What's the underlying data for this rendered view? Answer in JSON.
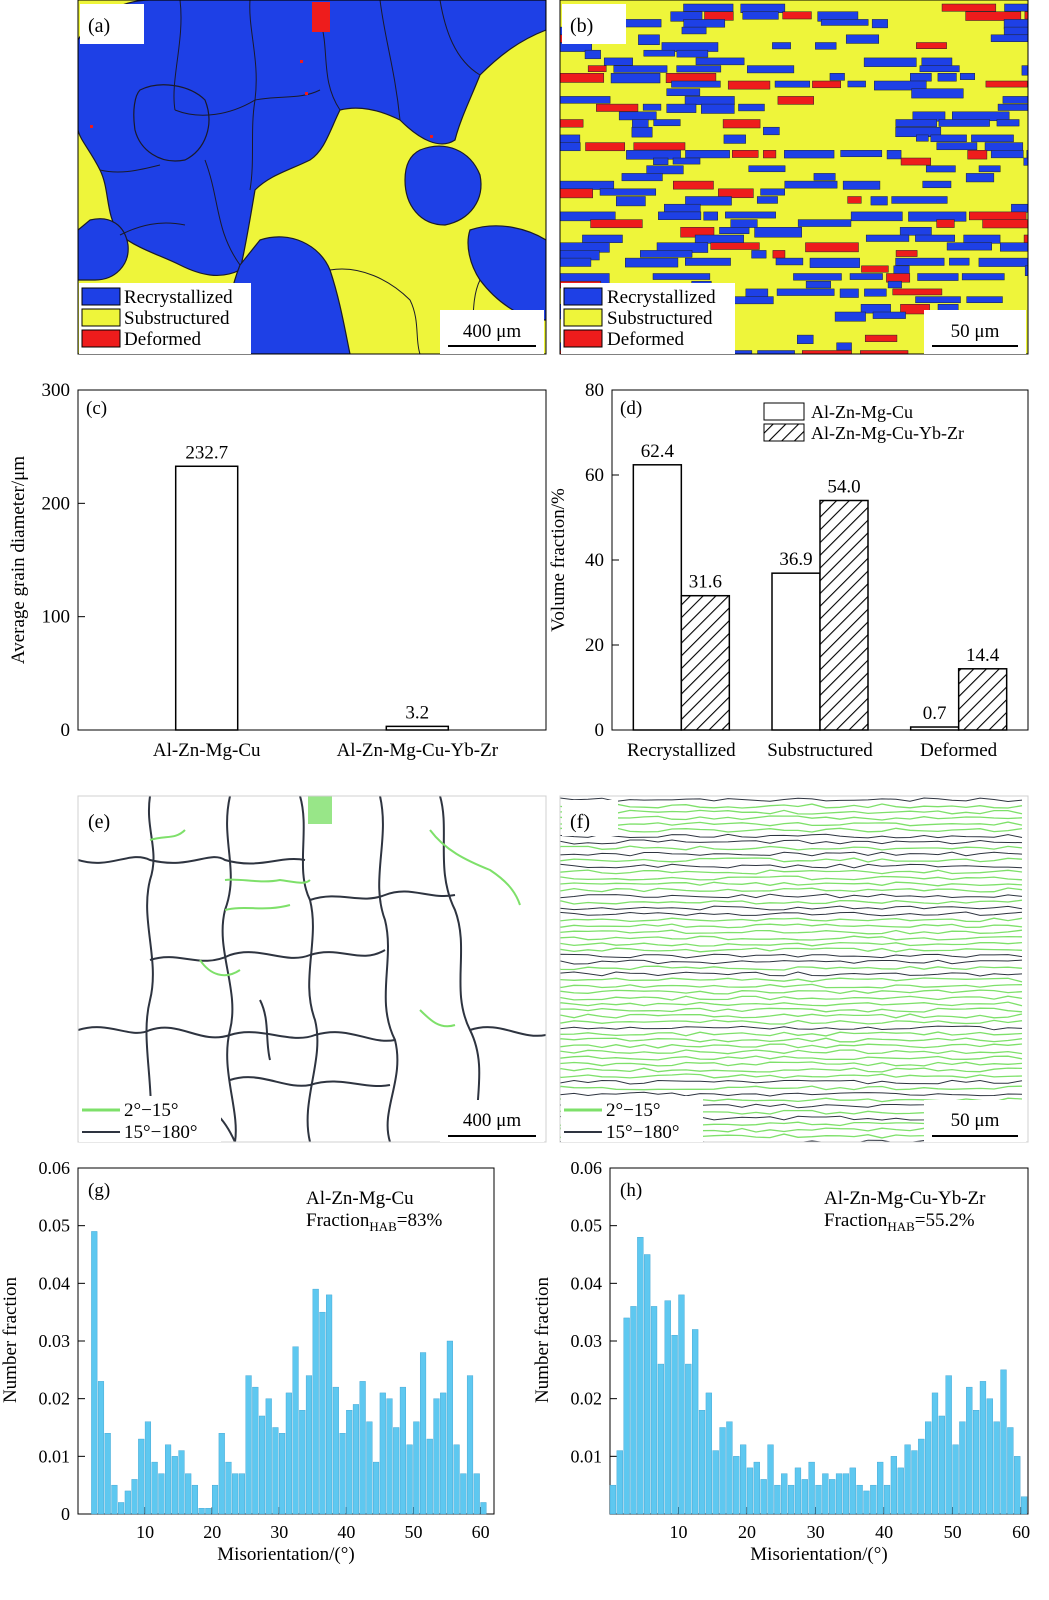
{
  "panels": {
    "a": {
      "label": "(a)",
      "legend": [
        "Recrystallized",
        "Substructured",
        "Deformed"
      ],
      "scale_bar": "400 μm"
    },
    "b": {
      "label": "(b)",
      "legend": [
        "Recrystallized",
        "Substructured",
        "Deformed"
      ],
      "scale_bar": "50 μm"
    },
    "e": {
      "label": "(e)",
      "legend": [
        "2°−15°",
        "15°−180°"
      ],
      "scale_bar": "400 μm"
    },
    "f": {
      "label": "(f)",
      "legend": [
        "2°−15°",
        "15°−180°"
      ],
      "scale_bar": "50 μm"
    }
  },
  "colors": {
    "recrystallized": "#1e40e6",
    "substructured": "#eef53a",
    "deformed": "#ee1c1c",
    "lab": "#7ee06a",
    "hab": "#2e3440",
    "histogram": "#5ec8f0"
  },
  "chart_data": [
    {
      "id": "c",
      "label": "(c)",
      "type": "bar",
      "ylabel": "Average grain diameter/μm",
      "xlabel": "",
      "categories": [
        "Al-Zn-Mg-Cu",
        "Al-Zn-Mg-Cu-Yb-Zr"
      ],
      "values": [
        232.7,
        3.2
      ],
      "data_labels": [
        "232.7",
        "3.2"
      ],
      "ylim": [
        0,
        300
      ],
      "yticks": [
        0,
        100,
        200,
        300
      ]
    },
    {
      "id": "d",
      "label": "(d)",
      "type": "bar",
      "ylabel": "Volume fraction/%",
      "xlabel": "",
      "categories": [
        "Recrystallized",
        "Substructured",
        "Deformed"
      ],
      "series": [
        {
          "name": "Al-Zn-Mg-Cu",
          "values": [
            62.4,
            36.9,
            0.7
          ],
          "data_labels": [
            "62.4",
            "36.9",
            "0.7"
          ]
        },
        {
          "name": "Al-Zn-Mg-Cu-Yb-Zr",
          "values": [
            31.6,
            54.0,
            14.4
          ],
          "data_labels": [
            "31.6",
            "54.0",
            "14.4"
          ]
        }
      ],
      "ylim": [
        0,
        80
      ],
      "yticks": [
        0,
        20,
        40,
        60,
        80
      ],
      "legend_position": "top-right"
    },
    {
      "id": "g",
      "label": "(g)",
      "type": "bar",
      "annotation": [
        "Al-Zn-Mg-Cu",
        "Fraction",
        "HAB",
        "=83%"
      ],
      "xlabel": "Misorientation/(°)",
      "ylabel": "Number fraction",
      "x_start": 2,
      "x_step": 1,
      "values": [
        0.049,
        0.023,
        0.014,
        0.005,
        0.002,
        0.004,
        0.006,
        0.013,
        0.016,
        0.009,
        0.007,
        0.012,
        0.01,
        0.011,
        0.007,
        0.005,
        0.001,
        0.001,
        0.005,
        0.014,
        0.009,
        0.007,
        0.007,
        0.024,
        0.022,
        0.017,
        0.02,
        0.015,
        0.014,
        0.021,
        0.029,
        0.018,
        0.024,
        0.039,
        0.035,
        0.038,
        0.022,
        0.014,
        0.018,
        0.019,
        0.023,
        0.016,
        0.009,
        0.021,
        0.02,
        0.015,
        0.022,
        0.012,
        0.016,
        0.028,
        0.013,
        0.02,
        0.021,
        0.03,
        0.012,
        0.007,
        0.024,
        0.007,
        0.002
      ],
      "xlim": [
        0,
        62
      ],
      "ylim": [
        0,
        0.06
      ],
      "xticks": [
        10,
        20,
        30,
        40,
        50,
        60
      ],
      "yticks": [
        0,
        0.01,
        0.02,
        0.03,
        0.04,
        0.05,
        0.06
      ],
      "ytick_labels": [
        "0",
        "0.01",
        "0.02",
        "0.03",
        "0.04",
        "0.05",
        "0.06"
      ]
    },
    {
      "id": "h",
      "label": "(h)",
      "type": "bar",
      "annotation": [
        "Al-Zn-Mg-Cu-Yb-Zr",
        "Fraction",
        "HAB",
        "=55.2%"
      ],
      "xlabel": "Misorientation/(°)",
      "ylabel": "Number fraction",
      "x_start": 0,
      "x_step": 1,
      "values": [
        0.005,
        0.011,
        0.034,
        0.036,
        0.048,
        0.045,
        0.036,
        0.026,
        0.037,
        0.031,
        0.038,
        0.026,
        0.032,
        0.018,
        0.021,
        0.011,
        0.015,
        0.016,
        0.01,
        0.012,
        0.008,
        0.009,
        0.006,
        0.012,
        0.005,
        0.007,
        0.005,
        0.008,
        0.006,
        0.009,
        0.005,
        0.007,
        0.006,
        0.007,
        0.007,
        0.008,
        0.005,
        0.004,
        0.005,
        0.009,
        0.005,
        0.01,
        0.008,
        0.012,
        0.011,
        0.013,
        0.016,
        0.021,
        0.017,
        0.024,
        0.012,
        0.016,
        0.022,
        0.018,
        0.023,
        0.02,
        0.016,
        0.025,
        0.015,
        0.01,
        0.003
      ],
      "xlim": [
        0,
        61
      ],
      "ylim": [
        0,
        0.06
      ],
      "xticks": [
        10,
        20,
        30,
        40,
        50,
        60
      ],
      "yticks": [
        0,
        0.01,
        0.02,
        0.03,
        0.04,
        0.05,
        0.06
      ],
      "ytick_labels": [
        "",
        "0.01",
        "0.02",
        "0.03",
        "0.04",
        "0.05",
        "0.06"
      ]
    }
  ]
}
